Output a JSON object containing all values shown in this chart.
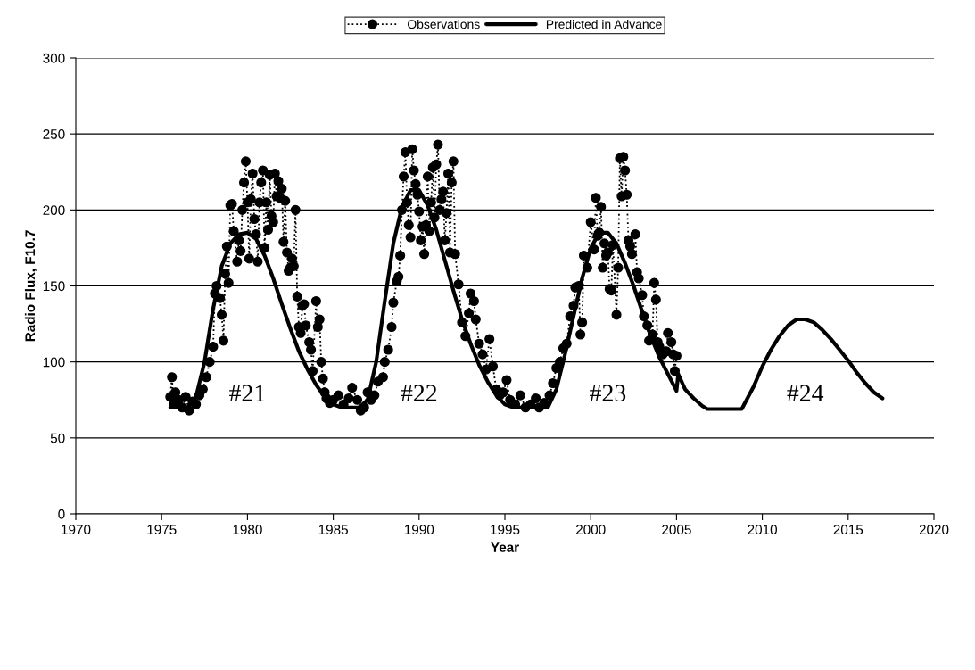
{
  "chart_data": {
    "type": "line",
    "xlabel": "Year",
    "ylabel": "Radio Flux, F10.7",
    "xlim": [
      1970,
      2020
    ],
    "xticks": [
      1970,
      1975,
      1980,
      1985,
      1990,
      1995,
      2000,
      2005,
      2010,
      2015,
      2020
    ],
    "ylim": [
      0,
      300
    ],
    "yticks": [
      0,
      50,
      100,
      150,
      200,
      250,
      300
    ],
    "grid": "y",
    "legend": "top",
    "series": [
      {
        "name": "Observations",
        "color": "#000000",
        "marker": "circle",
        "line_style": "dotted",
        "x": [
          1975.5,
          1975.6,
          1975.7,
          1975.8,
          1976.0,
          1976.2,
          1976.4,
          1976.6,
          1976.8,
          1977.0,
          1977.2,
          1977.4,
          1977.6,
          1977.8,
          1978.0,
          1978.1,
          1978.2,
          1978.4,
          1978.5,
          1978.6,
          1978.7,
          1978.8,
          1978.9,
          1979.0,
          1979.1,
          1979.2,
          1979.4,
          1979.5,
          1979.6,
          1979.7,
          1979.8,
          1979.9,
          1980.0,
          1980.1,
          1980.2,
          1980.3,
          1980.4,
          1980.5,
          1980.6,
          1980.7,
          1980.8,
          1980.9,
          1981.0,
          1981.1,
          1981.2,
          1981.3,
          1981.4,
          1981.5,
          1981.6,
          1981.7,
          1981.8,
          1981.9,
          1982.0,
          1982.1,
          1982.2,
          1982.3,
          1982.4,
          1982.5,
          1982.6,
          1982.7,
          1982.8,
          1982.9,
          1983.0,
          1983.1,
          1983.2,
          1983.3,
          1983.4,
          1983.6,
          1983.7,
          1983.8,
          1984.0,
          1984.1,
          1984.2,
          1984.3,
          1984.4,
          1984.5,
          1984.6,
          1984.8,
          1985.0,
          1985.3,
          1985.6,
          1985.9,
          1986.1,
          1986.4,
          1986.6,
          1986.8,
          1987.0,
          1987.2,
          1987.4,
          1987.6,
          1987.9,
          1988.0,
          1988.2,
          1988.4,
          1988.5,
          1988.7,
          1988.8,
          1988.9,
          1989.0,
          1989.1,
          1989.2,
          1989.3,
          1989.4,
          1989.5,
          1989.6,
          1989.7,
          1989.8,
          1989.9,
          1990.0,
          1990.1,
          1990.2,
          1990.3,
          1990.4,
          1990.5,
          1990.6,
          1990.7,
          1990.8,
          1990.9,
          1991.0,
          1991.1,
          1991.2,
          1991.3,
          1991.4,
          1991.5,
          1991.6,
          1991.7,
          1991.8,
          1991.9,
          1992.0,
          1992.1,
          1992.3,
          1992.5,
          1992.7,
          1992.9,
          1993.0,
          1993.2,
          1993.3,
          1993.5,
          1993.7,
          1993.9,
          1994.1,
          1994.3,
          1994.5,
          1994.7,
          1994.9,
          1995.1,
          1995.3,
          1995.6,
          1995.9,
          1996.2,
          1996.5,
          1996.8,
          1997.0,
          1997.3,
          1997.6,
          1997.8,
          1998.0,
          1998.2,
          1998.4,
          1998.6,
          1998.8,
          1999.0,
          1999.1,
          1999.3,
          1999.4,
          1999.5,
          1999.6,
          1999.8,
          2000.0,
          2000.2,
          2000.3,
          2000.4,
          2000.5,
          2000.6,
          2000.7,
          2000.8,
          2000.9,
          2001.0,
          2001.1,
          2001.2,
          2001.3,
          2001.5,
          2001.6,
          2001.7,
          2001.8,
          2001.9,
          2002.0,
          2002.1,
          2002.2,
          2002.3,
          2002.4,
          2002.6,
          2002.7,
          2002.8,
          2003.0,
          2003.1,
          2003.3,
          2003.4,
          2003.6,
          2003.7,
          2003.8,
          2003.9,
          2004.0,
          2004.2,
          2004.4,
          2004.5,
          2004.7,
          2004.8,
          2004.9,
          2005.0
        ],
        "values": [
          77,
          90,
          72,
          80,
          75,
          70,
          77,
          68,
          74,
          72,
          78,
          82,
          90,
          100,
          110,
          145,
          150,
          142,
          131,
          114,
          158,
          176,
          152,
          203,
          204,
          186,
          166,
          180,
          173,
          200,
          218,
          232,
          205,
          168,
          207,
          224,
          194,
          184,
          166,
          205,
          218,
          226,
          175,
          205,
          187,
          223,
          196,
          192,
          224,
          209,
          219,
          208,
          214,
          179,
          206,
          172,
          160,
          162,
          168,
          163,
          200,
          143,
          123,
          119,
          137,
          138,
          124,
          113,
          108,
          94,
          140,
          123,
          128,
          100,
          89,
          80,
          76,
          73,
          75,
          78,
          72,
          76,
          83,
          75,
          68,
          70,
          80,
          75,
          78,
          87,
          90,
          100,
          108,
          123,
          139,
          153,
          156,
          170,
          200,
          222,
          238,
          205,
          190,
          182,
          240,
          226,
          217,
          210,
          199,
          180,
          189,
          171,
          190,
          222,
          186,
          205,
          228,
          195,
          230,
          243,
          200,
          207,
          212,
          180,
          198,
          224,
          172,
          218,
          232,
          171,
          151,
          126,
          117,
          132,
          145,
          140,
          128,
          112,
          105,
          95,
          115,
          97,
          82,
          78,
          80,
          88,
          75,
          72,
          78,
          70,
          72,
          76,
          70,
          73,
          78,
          86,
          96,
          100,
          109,
          112,
          130,
          137,
          149,
          150,
          118,
          126,
          170,
          162,
          192,
          174,
          208,
          183,
          185,
          202,
          162,
          178,
          170,
          172,
          148,
          147,
          177,
          131,
          162,
          234,
          209,
          235,
          226,
          210,
          180,
          176,
          171,
          184,
          159,
          155,
          144,
          130,
          124,
          114,
          118,
          152,
          141,
          113,
          110,
          105,
          107,
          119,
          113,
          105,
          94,
          104
        ]
      },
      {
        "name": "Predicted in Advance",
        "color": "#000000",
        "marker": "none",
        "line_style": "solid",
        "x": [
          1975.5,
          1976.5,
          1977.0,
          1977.5,
          1978.0,
          1978.5,
          1979.0,
          1979.5,
          1980.0,
          1980.5,
          1981.0,
          1981.5,
          1982.0,
          1982.5,
          1983.0,
          1983.5,
          1984.0,
          1984.5,
          1985.0,
          1985.5,
          1986.5,
          1987.0,
          1987.5,
          1988.0,
          1988.5,
          1989.0,
          1989.5,
          1990.0,
          1990.5,
          1991.0,
          1991.5,
          1992.0,
          1992.5,
          1993.0,
          1993.5,
          1994.0,
          1994.5,
          1995.0,
          1995.5,
          1997.5,
          1998.0,
          1998.5,
          1999.0,
          1999.5,
          2000.0,
          2000.5,
          2001.0,
          2001.5,
          2002.0,
          2002.5,
          2003.0,
          2003.5,
          2004.0,
          2004.5,
          2005.0,
          2005.1,
          2005.5,
          2006.0,
          2006.5,
          2006.8,
          2008.8,
          2009.5,
          2010.0,
          2010.5,
          2011.0,
          2011.5,
          2012.0,
          2012.5,
          2013.0,
          2013.5,
          2014.0,
          2014.5,
          2015.0,
          2015.5,
          2016.0,
          2016.5,
          2017.0
        ],
        "values": [
          70,
          70,
          77,
          100,
          135,
          163,
          178,
          184,
          185,
          181,
          170,
          155,
          138,
          122,
          107,
          95,
          85,
          77,
          72,
          70,
          70,
          75,
          100,
          140,
          178,
          202,
          213,
          213,
          203,
          187,
          167,
          147,
          128,
          112,
          98,
          87,
          78,
          72,
          70,
          70,
          82,
          105,
          130,
          155,
          175,
          185,
          185,
          178,
          165,
          150,
          133,
          117,
          103,
          92,
          81,
          92,
          82,
          76,
          71,
          69,
          69,
          84,
          97,
          108,
          117,
          124,
          128,
          128,
          126,
          121,
          115,
          108,
          101,
          93,
          86,
          80,
          76
        ]
      }
    ],
    "annotations": [
      "#21",
      "#22",
      "#23",
      "#24"
    ]
  }
}
